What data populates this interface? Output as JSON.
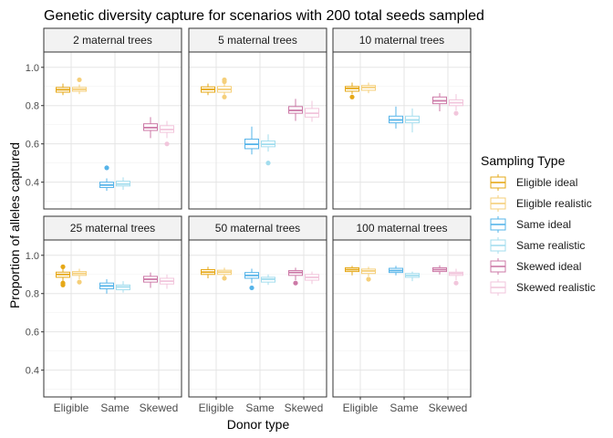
{
  "chart_data": {
    "type": "boxplot",
    "title": "Genetic diversity capture for scenarios with 200 total seeds sampled",
    "xlabel": "Donor type",
    "ylabel": "Proportion of alleles captured",
    "categories": [
      "Eligible",
      "Same",
      "Skewed"
    ],
    "y_ticks": [
      "0.4",
      "0.6",
      "0.8",
      "1.0"
    ],
    "ylim": [
      0.26,
      1.08
    ],
    "grid": true,
    "legend": {
      "title": "Sampling Type",
      "placement": "right",
      "entries": [
        "Eligible ideal",
        "Eligible realistic",
        "Same ideal",
        "Same realistic",
        "Skewed ideal",
        "Skewed realistic"
      ]
    },
    "series": [
      {
        "name": "Eligible ideal",
        "color": "#E6A817",
        "category": "Eligible",
        "variant": "ideal"
      },
      {
        "name": "Eligible realistic",
        "color": "#F5CF7A",
        "category": "Eligible",
        "variant": "realistic"
      },
      {
        "name": "Same ideal",
        "color": "#56B4E9",
        "category": "Same",
        "variant": "ideal"
      },
      {
        "name": "Same realistic",
        "color": "#A3DDEE",
        "category": "Same",
        "variant": "realistic"
      },
      {
        "name": "Skewed ideal",
        "color": "#CC79A7",
        "category": "Skewed",
        "variant": "ideal"
      },
      {
        "name": "Skewed realistic",
        "color": "#F2C6DC",
        "category": "Skewed",
        "variant": "realistic"
      }
    ],
    "panels": [
      {
        "label": "2 maternal trees",
        "boxes": [
          {
            "series": "Eligible ideal",
            "min": 0.855,
            "q1": 0.87,
            "median": 0.883,
            "q3": 0.895,
            "max": 0.915,
            "outliers": []
          },
          {
            "series": "Eligible realistic",
            "min": 0.86,
            "q1": 0.875,
            "median": 0.885,
            "q3": 0.895,
            "max": 0.91,
            "outliers": [
              0.935
            ]
          },
          {
            "series": "Same ideal",
            "min": 0.355,
            "q1": 0.372,
            "median": 0.385,
            "q3": 0.4,
            "max": 0.42,
            "outliers": [
              0.475
            ]
          },
          {
            "series": "Same realistic",
            "min": 0.36,
            "q1": 0.38,
            "median": 0.39,
            "q3": 0.405,
            "max": 0.425,
            "outliers": []
          },
          {
            "series": "Skewed ideal",
            "min": 0.63,
            "q1": 0.67,
            "median": 0.685,
            "q3": 0.705,
            "max": 0.74,
            "outliers": []
          },
          {
            "series": "Skewed realistic",
            "min": 0.63,
            "q1": 0.66,
            "median": 0.675,
            "q3": 0.695,
            "max": 0.72,
            "outliers": [
              0.6
            ]
          }
        ]
      },
      {
        "label": "5 maternal trees",
        "boxes": [
          {
            "series": "Eligible ideal",
            "min": 0.855,
            "q1": 0.87,
            "median": 0.885,
            "q3": 0.898,
            "max": 0.915,
            "outliers": []
          },
          {
            "series": "Eligible realistic",
            "min": 0.855,
            "q1": 0.87,
            "median": 0.885,
            "q3": 0.9,
            "max": 0.915,
            "outliers": [
              0.935,
              0.925,
              0.845
            ]
          },
          {
            "series": "Same ideal",
            "min": 0.545,
            "q1": 0.575,
            "median": 0.598,
            "q3": 0.625,
            "max": 0.69,
            "outliers": []
          },
          {
            "series": "Same realistic",
            "min": 0.56,
            "q1": 0.585,
            "median": 0.598,
            "q3": 0.615,
            "max": 0.65,
            "outliers": [
              0.5
            ]
          },
          {
            "series": "Skewed ideal",
            "min": 0.72,
            "q1": 0.76,
            "median": 0.775,
            "q3": 0.795,
            "max": 0.835,
            "outliers": []
          },
          {
            "series": "Skewed realistic",
            "min": 0.715,
            "q1": 0.74,
            "median": 0.76,
            "q3": 0.785,
            "max": 0.825,
            "outliers": []
          }
        ]
      },
      {
        "label": "10 maternal trees",
        "boxes": [
          {
            "series": "Eligible ideal",
            "min": 0.86,
            "q1": 0.875,
            "median": 0.89,
            "q3": 0.9,
            "max": 0.92,
            "outliers": [
              0.845
            ]
          },
          {
            "series": "Eligible realistic",
            "min": 0.865,
            "q1": 0.88,
            "median": 0.895,
            "q3": 0.905,
            "max": 0.92,
            "outliers": []
          },
          {
            "series": "Same ideal",
            "min": 0.68,
            "q1": 0.71,
            "median": 0.725,
            "q3": 0.745,
            "max": 0.795,
            "outliers": []
          },
          {
            "series": "Same realistic",
            "min": 0.66,
            "q1": 0.71,
            "median": 0.725,
            "q3": 0.745,
            "max": 0.785,
            "outliers": []
          },
          {
            "series": "Skewed ideal",
            "min": 0.77,
            "q1": 0.81,
            "median": 0.825,
            "q3": 0.845,
            "max": 0.865,
            "outliers": []
          },
          {
            "series": "Skewed realistic",
            "min": 0.775,
            "q1": 0.8,
            "median": 0.815,
            "q3": 0.83,
            "max": 0.86,
            "outliers": [
              0.76
            ]
          }
        ]
      },
      {
        "label": "25 maternal trees",
        "boxes": [
          {
            "series": "Eligible ideal",
            "min": 0.86,
            "q1": 0.885,
            "median": 0.9,
            "q3": 0.912,
            "max": 0.93,
            "outliers": [
              0.94,
              0.855,
              0.845
            ]
          },
          {
            "series": "Eligible realistic",
            "min": 0.875,
            "q1": 0.895,
            "median": 0.905,
            "q3": 0.915,
            "max": 0.93,
            "outliers": [
              0.86
            ]
          },
          {
            "series": "Same ideal",
            "min": 0.8,
            "q1": 0.825,
            "median": 0.84,
            "q3": 0.855,
            "max": 0.875,
            "outliers": []
          },
          {
            "series": "Same realistic",
            "min": 0.805,
            "q1": 0.82,
            "median": 0.835,
            "q3": 0.845,
            "max": 0.865,
            "outliers": []
          },
          {
            "series": "Skewed ideal",
            "min": 0.83,
            "q1": 0.86,
            "median": 0.875,
            "q3": 0.89,
            "max": 0.91,
            "outliers": []
          },
          {
            "series": "Skewed realistic",
            "min": 0.825,
            "q1": 0.85,
            "median": 0.865,
            "q3": 0.88,
            "max": 0.9,
            "outliers": []
          }
        ]
      },
      {
        "label": "50 maternal trees",
        "boxes": [
          {
            "series": "Eligible ideal",
            "min": 0.88,
            "q1": 0.9,
            "median": 0.912,
            "q3": 0.925,
            "max": 0.94,
            "outliers": []
          },
          {
            "series": "Eligible realistic",
            "min": 0.89,
            "q1": 0.9,
            "median": 0.912,
            "q3": 0.922,
            "max": 0.935,
            "outliers": [
              0.88
            ]
          },
          {
            "series": "Same ideal",
            "min": 0.855,
            "q1": 0.88,
            "median": 0.895,
            "q3": 0.91,
            "max": 0.93,
            "outliers": [
              0.83
            ]
          },
          {
            "series": "Same realistic",
            "min": 0.845,
            "q1": 0.86,
            "median": 0.875,
            "q3": 0.885,
            "max": 0.9,
            "outliers": []
          },
          {
            "series": "Skewed ideal",
            "min": 0.87,
            "q1": 0.895,
            "median": 0.91,
            "q3": 0.92,
            "max": 0.935,
            "outliers": [
              0.855
            ]
          },
          {
            "series": "Skewed realistic",
            "min": 0.85,
            "q1": 0.87,
            "median": 0.885,
            "q3": 0.9,
            "max": 0.915,
            "outliers": []
          }
        ]
      },
      {
        "label": "100 maternal trees",
        "boxes": [
          {
            "series": "Eligible ideal",
            "min": 0.895,
            "q1": 0.915,
            "median": 0.925,
            "q3": 0.935,
            "max": 0.945,
            "outliers": []
          },
          {
            "series": "Eligible realistic",
            "min": 0.89,
            "q1": 0.905,
            "median": 0.918,
            "q3": 0.928,
            "max": 0.94,
            "outliers": [
              0.875
            ]
          },
          {
            "series": "Same ideal",
            "min": 0.895,
            "q1": 0.91,
            "median": 0.92,
            "q3": 0.932,
            "max": 0.945,
            "outliers": []
          },
          {
            "series": "Same realistic",
            "min": 0.865,
            "q1": 0.885,
            "median": 0.895,
            "q3": 0.905,
            "max": 0.915,
            "outliers": []
          },
          {
            "series": "Skewed ideal",
            "min": 0.9,
            "q1": 0.915,
            "median": 0.925,
            "q3": 0.935,
            "max": 0.948,
            "outliers": []
          },
          {
            "series": "Skewed realistic",
            "min": 0.87,
            "q1": 0.895,
            "median": 0.905,
            "q3": 0.912,
            "max": 0.93,
            "outliers": [
              0.855
            ]
          }
        ]
      }
    ]
  }
}
